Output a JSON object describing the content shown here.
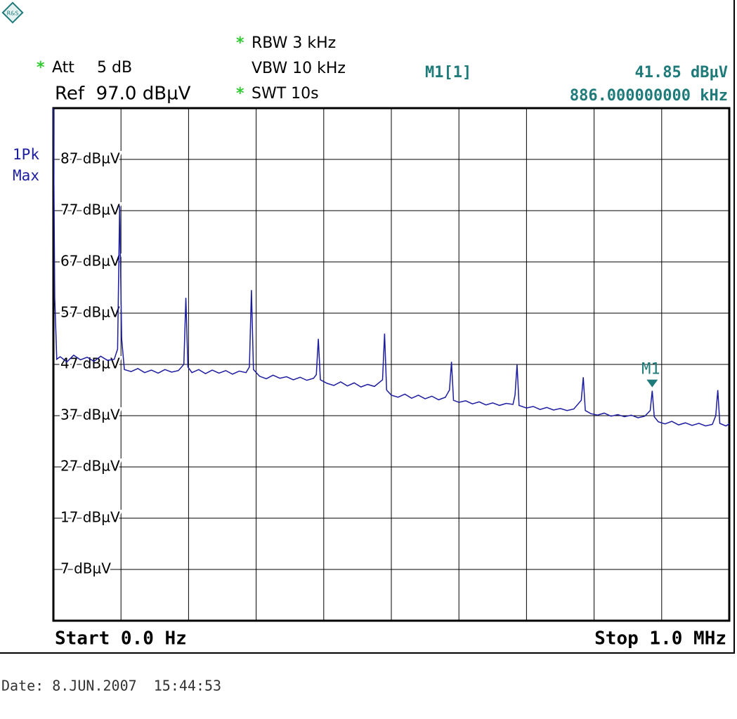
{
  "chart_data": {
    "type": "line",
    "logo": "R&S",
    "settings": [
      {
        "flag": "*",
        "label": "Att",
        "value": "5 dB"
      },
      {
        "flag": "*",
        "label": "RBW 3 kHz"
      },
      {
        "label": "VBW 10 kHz"
      },
      {
        "flag": "*",
        "label": "SWT 10s"
      }
    ],
    "reference": "Ref  97.0 dBµV",
    "trace_label": [
      "1Pk",
      "Max"
    ],
    "marker_readout": {
      "name": "M1[1]",
      "level": "41.85 dBµV",
      "frequency": "886.000000000 kHz"
    },
    "markers": [
      {
        "label": "M1",
        "x": 886000,
        "y": 41.85
      }
    ],
    "start_label": "Start 0.0 Hz",
    "stop_label": "Stop 1.0 MHz",
    "date": "Date: 8.JUN.2007  15:44:53",
    "color": "#1c1ca0",
    "grid": true,
    "xlim": [
      0,
      1000000
    ],
    "xticks": [
      0,
      100000,
      200000,
      300000,
      400000,
      500000,
      600000,
      700000,
      800000,
      900000,
      1000000
    ],
    "ylim": [
      -3,
      97
    ],
    "yticks": [
      {
        "value": 87,
        "label": "87 dBµV"
      },
      {
        "value": 77,
        "label": "77 dBµV"
      },
      {
        "value": 67,
        "label": "67 dBµV"
      },
      {
        "value": 57,
        "label": "57 dBµV"
      },
      {
        "value": 47,
        "label": "47 dBµV"
      },
      {
        "value": 37,
        "label": "37 dBµV"
      },
      {
        "value": 27,
        "label": "27 dBµV"
      },
      {
        "value": 17,
        "label": "17 dBµV"
      },
      {
        "value": 7,
        "label": "7 dBµV"
      }
    ],
    "x": [
      0,
      2000,
      5000,
      10000,
      20000,
      30000,
      40000,
      50000,
      60000,
      70000,
      80000,
      90000,
      95000,
      98000,
      101000,
      105000,
      115000,
      125000,
      135000,
      145000,
      155000,
      165000,
      175000,
      185000,
      193000,
      196000,
      199000,
      205000,
      215000,
      225000,
      235000,
      245000,
      255000,
      265000,
      275000,
      285000,
      290000,
      293000,
      296000,
      305000,
      315000,
      325000,
      335000,
      345000,
      355000,
      365000,
      375000,
      385000,
      389000,
      392000,
      395000,
      405000,
      415000,
      425000,
      435000,
      445000,
      455000,
      465000,
      475000,
      487000,
      490000,
      493000,
      500000,
      510000,
      520000,
      530000,
      540000,
      550000,
      560000,
      570000,
      580000,
      586000,
      589000,
      592000,
      600000,
      610000,
      620000,
      630000,
      640000,
      650000,
      660000,
      670000,
      680000,
      683000,
      686000,
      689000,
      700000,
      710000,
      720000,
      730000,
      740000,
      750000,
      760000,
      770000,
      781000,
      784000,
      787000,
      795000,
      805000,
      815000,
      825000,
      835000,
      845000,
      855000,
      865000,
      875000,
      883000,
      886000,
      889000,
      895000,
      905000,
      915000,
      925000,
      935000,
      945000,
      955000,
      965000,
      975000,
      980000,
      983000,
      986000,
      995000,
      1000000
    ],
    "values": [
      97,
      60,
      48,
      48.5,
      47.5,
      48.8,
      47.9,
      48.4,
      47.6,
      48.6,
      47.8,
      48,
      50,
      78,
      52,
      46,
      45.6,
      46.2,
      45.4,
      45.9,
      45.3,
      46,
      45.5,
      45.8,
      47,
      60,
      46.5,
      45.4,
      46,
      45.2,
      45.9,
      45.3,
      45.8,
      45.1,
      45.7,
      45.4,
      46.5,
      61.5,
      46,
      44.7,
      44.2,
      44.9,
      44.3,
      44.6,
      44,
      44.5,
      43.9,
      44.3,
      45,
      52,
      44,
      43.3,
      42.9,
      43.6,
      42.8,
      43.4,
      42.6,
      43.1,
      42.7,
      44,
      53,
      42,
      41,
      40.6,
      41.2,
      40.4,
      41,
      40.3,
      40.8,
      40.1,
      40.6,
      42,
      47.5,
      40,
      39.6,
      39.9,
      39.3,
      39.7,
      39.1,
      39.5,
      39,
      39.4,
      39.2,
      41,
      47,
      39,
      38.5,
      38.8,
      38.2,
      38.6,
      38.1,
      38.4,
      38,
      38.3,
      40,
      44.5,
      38,
      37.4,
      37.1,
      37.5,
      36.9,
      37.2,
      36.8,
      37.1,
      36.6,
      36.9,
      38,
      41.85,
      36.8,
      35.8,
      35.4,
      35.9,
      35.2,
      35.6,
      35.1,
      35.5,
      35,
      35.3,
      37,
      42,
      35.5,
      35,
      35.4
    ]
  }
}
